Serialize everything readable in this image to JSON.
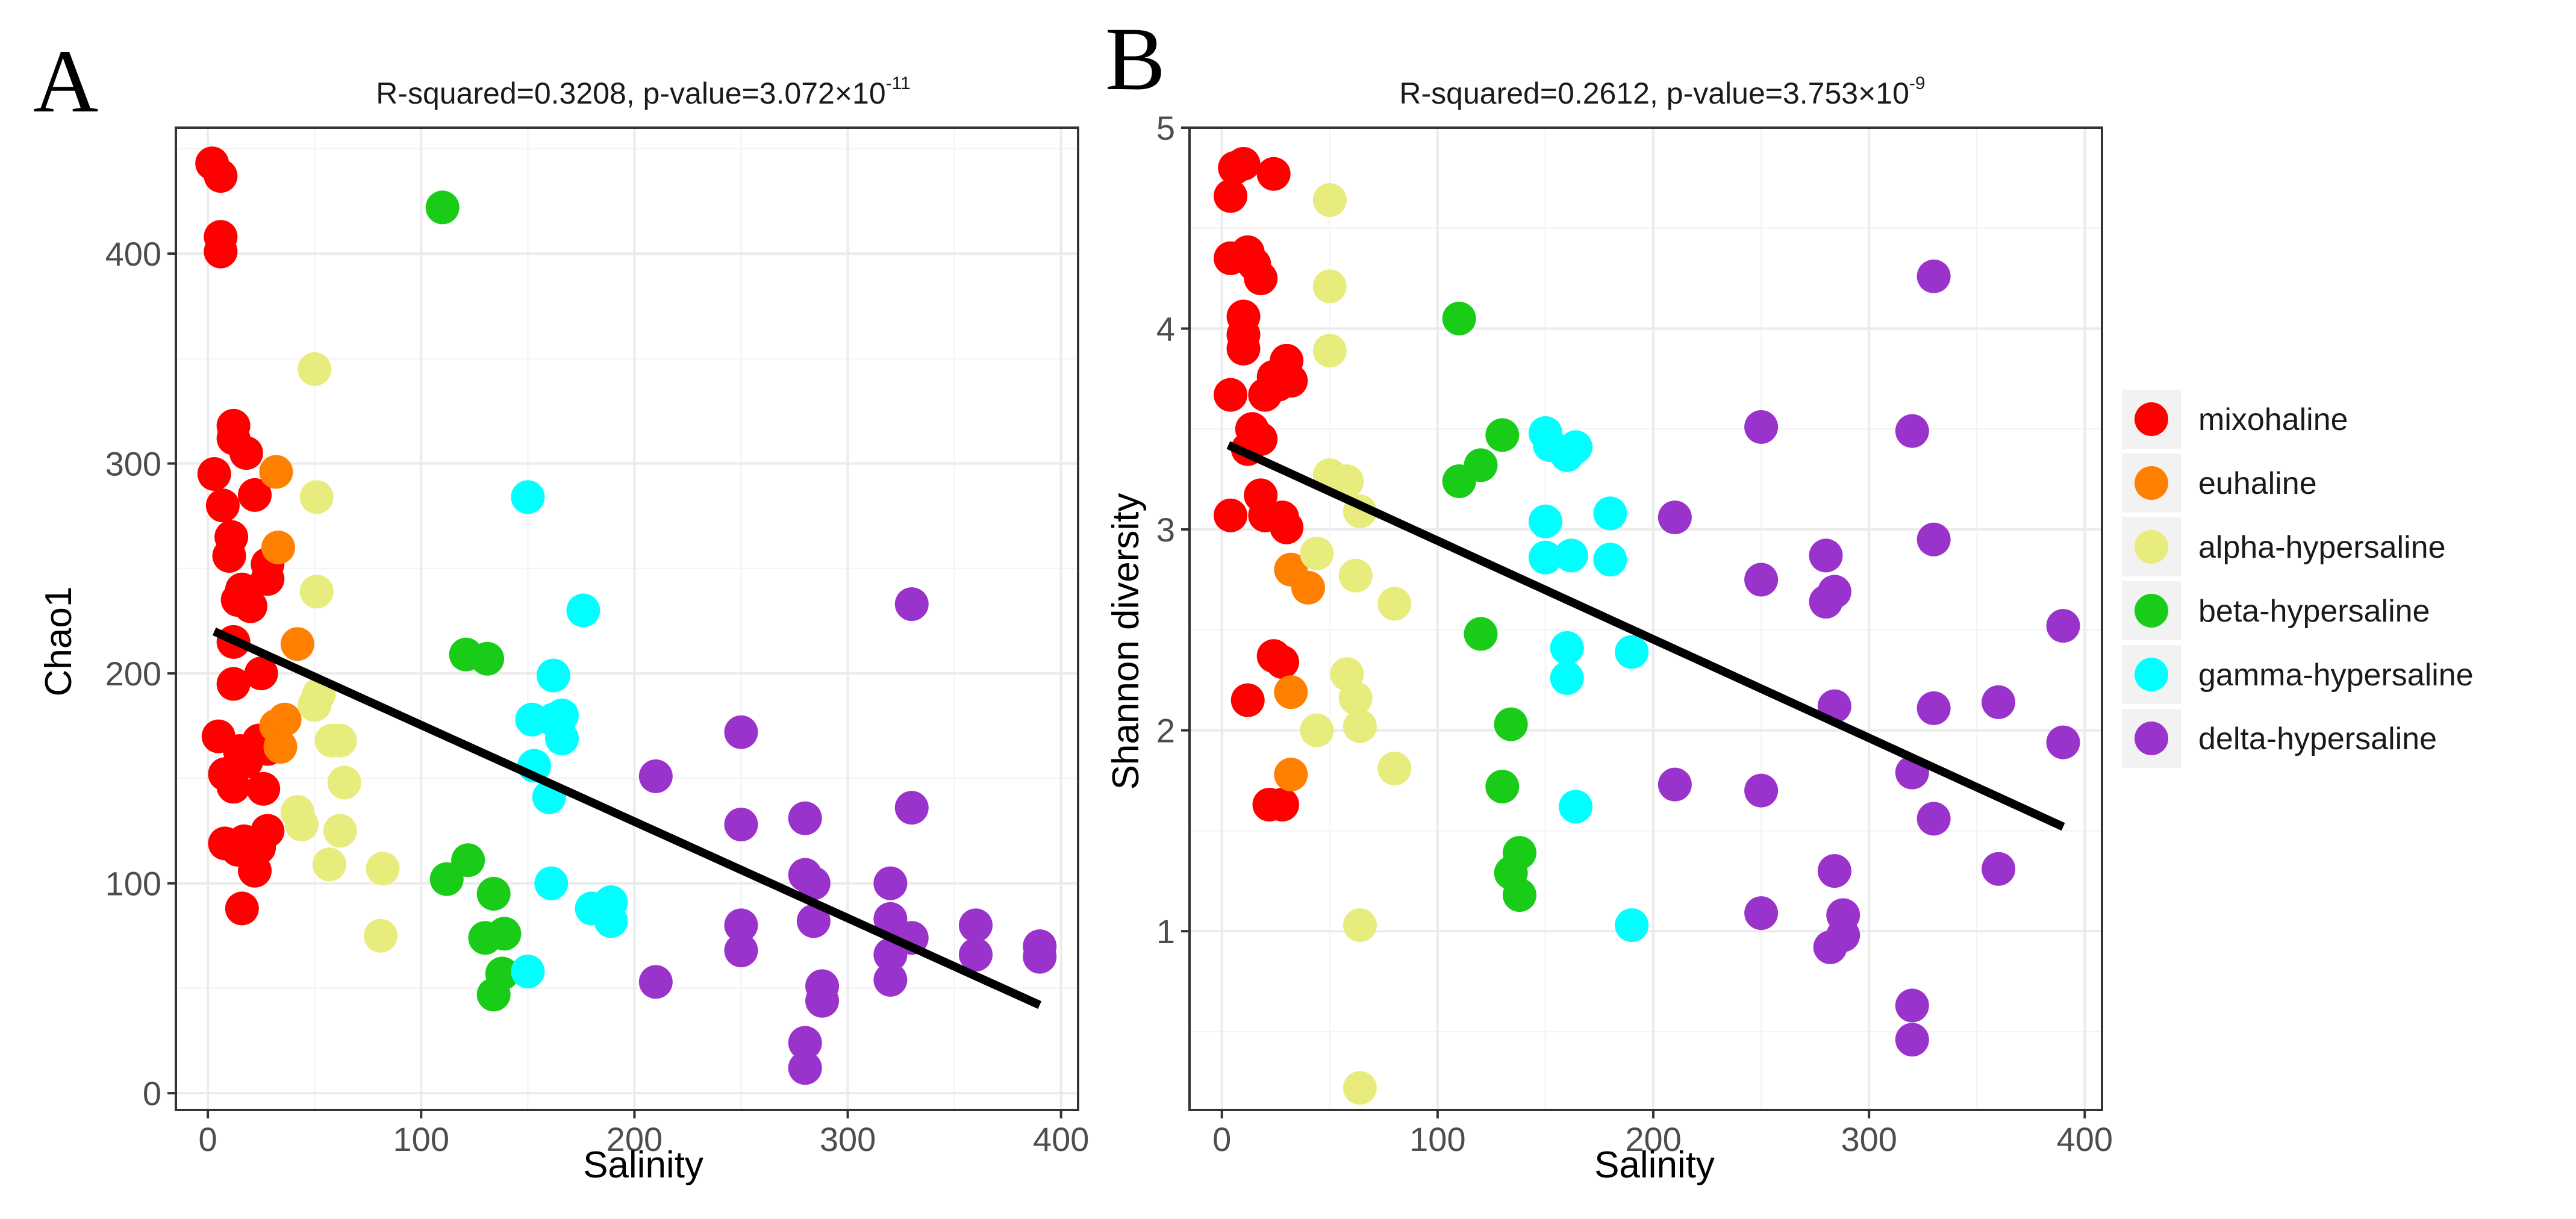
{
  "legend": {
    "items": [
      {
        "label": "mixohaline",
        "color": "#ff0000"
      },
      {
        "label": "euhaline",
        "color": "#ff7f00"
      },
      {
        "label": "alpha-hypersaline",
        "color": "#e8ec7c"
      },
      {
        "label": "beta-hypersaline",
        "color": "#18cc18"
      },
      {
        "label": "gamma-hypersaline",
        "color": "#00ffff"
      },
      {
        "label": "delta-hypersaline",
        "color": "#9933cc"
      }
    ]
  },
  "chart_data": [
    {
      "panel_label": "A",
      "type": "scatter",
      "title": "R-squared=0.3208, p-value=3.072×10",
      "title_exponent": "-11",
      "xlabel": "Salinity",
      "ylabel": "Chao1",
      "xlim": [
        -15,
        408
      ],
      "ylim": [
        -8,
        460
      ],
      "xticks": [
        0,
        100,
        200,
        300,
        400
      ],
      "yticks": [
        0,
        100,
        200,
        300,
        400
      ],
      "fit_line": {
        "x": [
          3,
          390
        ],
        "y": [
          220,
          42
        ]
      },
      "series": [
        {
          "name": "mixohaline",
          "points": [
            [
              2,
              443
            ],
            [
              6,
              437
            ],
            [
              6,
              408
            ],
            [
              6,
              401
            ],
            [
              3,
              295
            ],
            [
              7,
              280
            ],
            [
              12,
              318
            ],
            [
              12,
              312
            ],
            [
              11,
              265
            ],
            [
              10,
              256
            ],
            [
              16,
              240
            ],
            [
              14,
              235
            ],
            [
              20,
              232
            ],
            [
              25,
              200
            ],
            [
              28,
              245
            ],
            [
              28,
              252
            ],
            [
              22,
              285
            ],
            [
              18,
              305
            ],
            [
              12,
              215
            ],
            [
              12,
              195
            ],
            [
              5,
              170
            ],
            [
              8,
              152
            ],
            [
              12,
              146
            ],
            [
              15,
              163
            ],
            [
              18,
              158
            ],
            [
              24,
              168
            ],
            [
              28,
              164
            ],
            [
              26,
              145
            ],
            [
              28,
              125
            ],
            [
              24,
              117
            ],
            [
              20,
              114
            ],
            [
              17,
              120
            ],
            [
              14,
              116
            ],
            [
              8,
              119
            ],
            [
              22,
              106
            ],
            [
              16,
              88
            ]
          ]
        },
        {
          "name": "euhaline",
          "points": [
            [
              32,
              296
            ],
            [
              33,
              260
            ],
            [
              42,
              214
            ],
            [
              32,
              175
            ],
            [
              36,
              178
            ],
            [
              34,
              165
            ]
          ]
        },
        {
          "name": "alpha-hypersaline",
          "points": [
            [
              50,
              345
            ],
            [
              51,
              284
            ],
            [
              51,
              239
            ],
            [
              50,
              185
            ],
            [
              52,
              190
            ],
            [
              58,
              168
            ],
            [
              62,
              168
            ],
            [
              64,
              148
            ],
            [
              42,
              134
            ],
            [
              44,
              128
            ],
            [
              62,
              125
            ],
            [
              57,
              109
            ],
            [
              82,
              107
            ],
            [
              81,
              75
            ]
          ]
        },
        {
          "name": "beta-hypersaline",
          "points": [
            [
              110,
              422
            ],
            [
              121,
              209
            ],
            [
              131,
              207
            ],
            [
              112,
              102
            ],
            [
              122,
              111
            ],
            [
              134,
              95
            ],
            [
              130,
              74
            ],
            [
              139,
              76
            ],
            [
              138,
              57
            ],
            [
              134,
              47
            ]
          ]
        },
        {
          "name": "gamma-hypersaline",
          "points": [
            [
              150,
              284
            ],
            [
              176,
              230
            ],
            [
              162,
              199
            ],
            [
              152,
              178
            ],
            [
              162,
              178
            ],
            [
              166,
              180
            ],
            [
              166,
              169
            ],
            [
              153,
              156
            ],
            [
              160,
              141
            ],
            [
              161,
              100
            ],
            [
              150,
              58
            ],
            [
              180,
              88
            ],
            [
              189,
              91
            ],
            [
              189,
              82
            ]
          ]
        },
        {
          "name": "delta-hypersaline",
          "points": [
            [
              330,
              233
            ],
            [
              250,
              172
            ],
            [
              210,
              151
            ],
            [
              330,
              136
            ],
            [
              280,
              131
            ],
            [
              250,
              128
            ],
            [
              280,
              104
            ],
            [
              284,
              100
            ],
            [
              320,
              100
            ],
            [
              250,
              80
            ],
            [
              284,
              82
            ],
            [
              320,
              83
            ],
            [
              330,
              74
            ],
            [
              360,
              80
            ],
            [
              390,
              70
            ],
            [
              250,
              68
            ],
            [
              320,
              66
            ],
            [
              360,
              66
            ],
            [
              390,
              65
            ],
            [
              210,
              53
            ],
            [
              320,
              54
            ],
            [
              288,
              51
            ],
            [
              288,
              44
            ],
            [
              280,
              24
            ],
            [
              280,
              12
            ]
          ]
        }
      ]
    },
    {
      "panel_label": "B",
      "type": "scatter",
      "title": "R-squared=0.2612, p-value=3.753×10",
      "title_exponent": "-9",
      "xlabel": "Salinity",
      "ylabel": "Shannon  diversity",
      "xlim": [
        -15,
        408
      ],
      "ylim": [
        0.11,
        5.0
      ],
      "xticks": [
        0,
        100,
        200,
        300,
        400
      ],
      "yticks": [
        1,
        2,
        3,
        4,
        5
      ],
      "fit_line": {
        "x": [
          3,
          390
        ],
        "y": [
          3.42,
          1.52
        ]
      },
      "series": [
        {
          "name": "mixohaline",
          "points": [
            [
              10,
              4.82
            ],
            [
              6,
              4.8
            ],
            [
              24,
              4.77
            ],
            [
              4,
              4.66
            ],
            [
              4,
              4.35
            ],
            [
              12,
              4.38
            ],
            [
              15,
              4.32
            ],
            [
              18,
              4.25
            ],
            [
              10,
              4.06
            ],
            [
              10,
              3.97
            ],
            [
              10,
              3.9
            ],
            [
              30,
              3.84
            ],
            [
              24,
              3.76
            ],
            [
              26,
              3.72
            ],
            [
              32,
              3.74
            ],
            [
              20,
              3.67
            ],
            [
              4,
              3.67
            ],
            [
              14,
              3.5
            ],
            [
              18,
              3.45
            ],
            [
              12,
              3.4
            ],
            [
              18,
              3.17
            ],
            [
              4,
              3.07
            ],
            [
              20,
              3.07
            ],
            [
              28,
              3.06
            ],
            [
              30,
              3.01
            ],
            [
              24,
              2.37
            ],
            [
              28,
              2.34
            ],
            [
              12,
              2.15
            ],
            [
              22,
              1.63
            ],
            [
              28,
              1.63
            ]
          ]
        },
        {
          "name": "euhaline",
          "points": [
            [
              32,
              2.8
            ],
            [
              40,
              2.71
            ],
            [
              32,
              2.19
            ],
            [
              32,
              1.78
            ]
          ]
        },
        {
          "name": "alpha-hypersaline",
          "points": [
            [
              50,
              4.64
            ],
            [
              50,
              4.21
            ],
            [
              50,
              3.89
            ],
            [
              50,
              3.27
            ],
            [
              58,
              3.24
            ],
            [
              64,
              3.09
            ],
            [
              44,
              2.88
            ],
            [
              62,
              2.77
            ],
            [
              80,
              2.63
            ],
            [
              58,
              2.28
            ],
            [
              62,
              2.16
            ],
            [
              64,
              2.02
            ],
            [
              44,
              2.0
            ],
            [
              80,
              1.81
            ],
            [
              64,
              1.03
            ],
            [
              64,
              0.22
            ]
          ]
        },
        {
          "name": "beta-hypersaline",
          "points": [
            [
              110,
              4.05
            ],
            [
              130,
              3.47
            ],
            [
              120,
              3.32
            ],
            [
              110,
              3.24
            ],
            [
              120,
              2.48
            ],
            [
              134,
              2.03
            ],
            [
              130,
              1.72
            ],
            [
              138,
              1.39
            ],
            [
              134,
              1.29
            ],
            [
              138,
              1.18
            ]
          ]
        },
        {
          "name": "gamma-hypersaline",
          "points": [
            [
              150,
              3.48
            ],
            [
              152,
              3.42
            ],
            [
              164,
              3.41
            ],
            [
              160,
              3.37
            ],
            [
              180,
              3.08
            ],
            [
              150,
              3.04
            ],
            [
              150,
              2.86
            ],
            [
              162,
              2.87
            ],
            [
              180,
              2.85
            ],
            [
              160,
              2.41
            ],
            [
              190,
              2.39
            ],
            [
              160,
              2.26
            ],
            [
              164,
              1.62
            ],
            [
              190,
              1.03
            ]
          ]
        },
        {
          "name": "delta-hypersaline",
          "points": [
            [
              330,
              4.26
            ],
            [
              250,
              3.51
            ],
            [
              320,
              3.49
            ],
            [
              210,
              3.06
            ],
            [
              330,
              2.95
            ],
            [
              280,
              2.87
            ],
            [
              250,
              2.75
            ],
            [
              284,
              2.69
            ],
            [
              280,
              2.64
            ],
            [
              390,
              2.52
            ],
            [
              360,
              2.14
            ],
            [
              284,
              2.12
            ],
            [
              330,
              2.11
            ],
            [
              390,
              1.94
            ],
            [
              320,
              1.79
            ],
            [
              210,
              1.73
            ],
            [
              250,
              1.7
            ],
            [
              330,
              1.56
            ],
            [
              360,
              1.31
            ],
            [
              284,
              1.3
            ],
            [
              250,
              1.09
            ],
            [
              288,
              1.08
            ],
            [
              288,
              0.98
            ],
            [
              282,
              0.92
            ],
            [
              320,
              0.63
            ],
            [
              320,
              0.46
            ]
          ]
        }
      ]
    }
  ]
}
